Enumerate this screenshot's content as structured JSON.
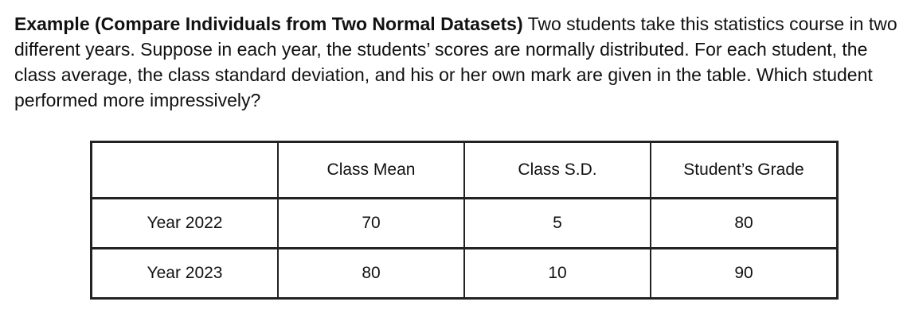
{
  "example": {
    "title": "Example (Compare Individuals from Two Normal Datasets)",
    "text": " Two students take this statistics course in two different years. Suppose in each year, the students’ scores are normally distributed. For each student, the class average, the class standard deviation, and his or her own mark are given in the table. Which student performed more impressively?"
  },
  "table": {
    "headers": [
      "",
      "Class Mean",
      "Class S.D.",
      "Student’s Grade"
    ],
    "rows": [
      {
        "label": "Year 2022",
        "mean": "70",
        "sd": "5",
        "grade": "80"
      },
      {
        "label": "Year 2023",
        "mean": "80",
        "sd": "10",
        "grade": "90"
      }
    ]
  }
}
